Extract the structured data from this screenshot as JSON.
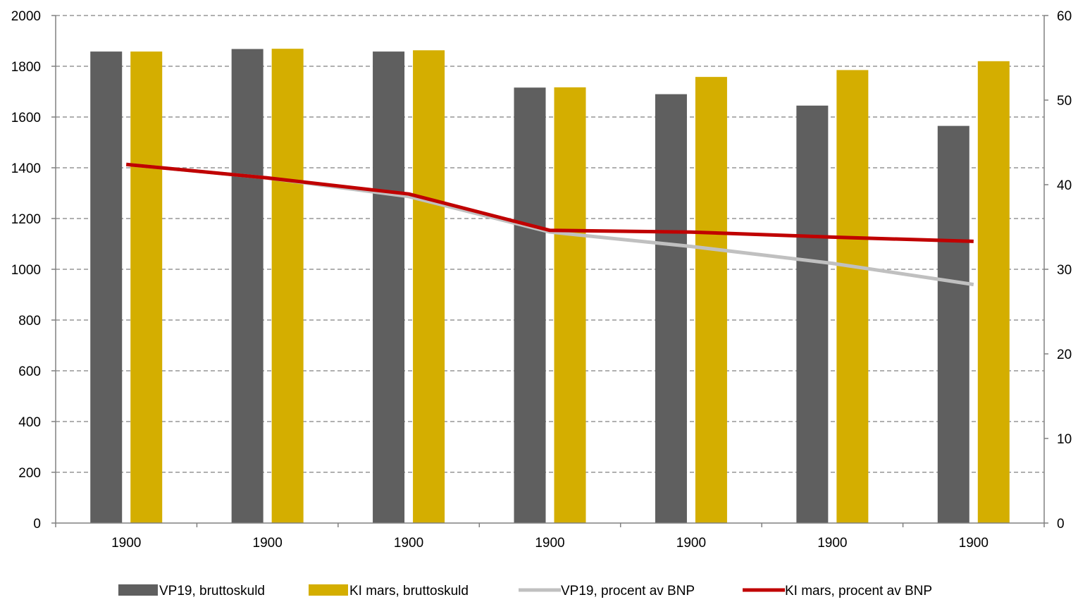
{
  "chart_data": {
    "type": "bar",
    "title": "",
    "xlabel": "",
    "ylabel": "",
    "y2label": "",
    "categories": [
      "1900",
      "1900",
      "1900",
      "1900",
      "1900",
      "1900",
      "1900"
    ],
    "ylim": [
      0,
      2000
    ],
    "y_ticks": [
      "0",
      "200",
      "400",
      "600",
      "800",
      "1000",
      "1200",
      "1400",
      "1600",
      "1800",
      "2000"
    ],
    "y2lim": [
      0,
      60
    ],
    "y2_ticks": [
      "0",
      "10",
      "20",
      "30",
      "40",
      "50",
      "60"
    ],
    "grid": "horizontal dashed",
    "legend_position": "bottom",
    "series": [
      {
        "name": "VP19, bruttoskuld",
        "kind": "bar",
        "axis": "left",
        "color": "#5f5f5f",
        "values": [
          1858,
          1868,
          1858,
          1716,
          1690,
          1645,
          1565
        ]
      },
      {
        "name": "KI mars, bruttoskuld",
        "kind": "bar",
        "axis": "left",
        "color": "#d4ae00",
        "values": [
          1858,
          1869,
          1863,
          1717,
          1758,
          1785,
          1820
        ]
      },
      {
        "name": "VP19, procent av BNP",
        "kind": "line",
        "axis": "right",
        "color": "#c0c0c0",
        "values": [
          42.4,
          40.8,
          38.6,
          34.4,
          32.7,
          30.7,
          28.2
        ]
      },
      {
        "name": "KI mars, procent av BNP",
        "kind": "line",
        "axis": "right",
        "color": "#c00000",
        "values": [
          42.4,
          40.8,
          38.9,
          34.6,
          34.4,
          33.8,
          33.3
        ]
      }
    ]
  }
}
